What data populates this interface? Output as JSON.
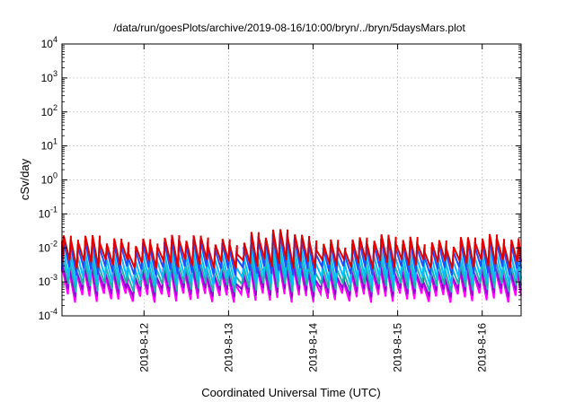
{
  "chart_data": {
    "type": "line",
    "title": "/data/run/goesPlots/archive/2019-08-16/10:00/bryn/../bryn/5daysMars.plot",
    "xlabel": "Coordinated Universal Time (UTC)",
    "ylabel": "cSv/day",
    "x_tick_labels": [
      "2019-8-12",
      "2019-8-13",
      "2019-8-14",
      "2019-8-15",
      "2019-8-16"
    ],
    "x_tick_days": [
      12,
      13,
      14,
      15,
      16
    ],
    "xlim_days": [
      11.03,
      16.46
    ],
    "y_scale": "log",
    "ylim": [
      0.0001,
      10000
    ],
    "y_ticks": [
      {
        "base": "10",
        "exp": "-4",
        "value": 0.0001
      },
      {
        "base": "10",
        "exp": "-3",
        "value": 0.001
      },
      {
        "base": "10",
        "exp": "-2",
        "value": 0.01
      },
      {
        "base": "10",
        "exp": "-1",
        "value": 0.1
      },
      {
        "base": "10",
        "exp": "0",
        "value": 1
      },
      {
        "base": "10",
        "exp": "1",
        "value": 10
      },
      {
        "base": "10",
        "exp": "2",
        "value": 100
      },
      {
        "base": "10",
        "exp": "3",
        "value": 1000
      },
      {
        "base": "10",
        "exp": "4",
        "value": 10000
      }
    ],
    "grid": true,
    "cycle_days": 0.0854,
    "series": [
      {
        "color": "#ff00ff",
        "peak": 0.002,
        "trough": 0.00035,
        "phase": 0.0
      },
      {
        "color": "#9400d3",
        "peak": 0.0022,
        "trough": 0.0005,
        "phase": 0.004
      },
      {
        "color": "#20b2aa",
        "peak": 0.0035,
        "trough": 0.0007,
        "phase": 0.008
      },
      {
        "color": "#00bfff",
        "peak": 0.0065,
        "trough": 0.0011,
        "phase": 0.012
      },
      {
        "color": "#1e50ff",
        "peak": 0.012,
        "trough": 0.0022,
        "phase": 0.016
      },
      {
        "color": "#e00000",
        "peak": 0.016,
        "trough": 0.0035,
        "phase": 0.02
      }
    ]
  }
}
